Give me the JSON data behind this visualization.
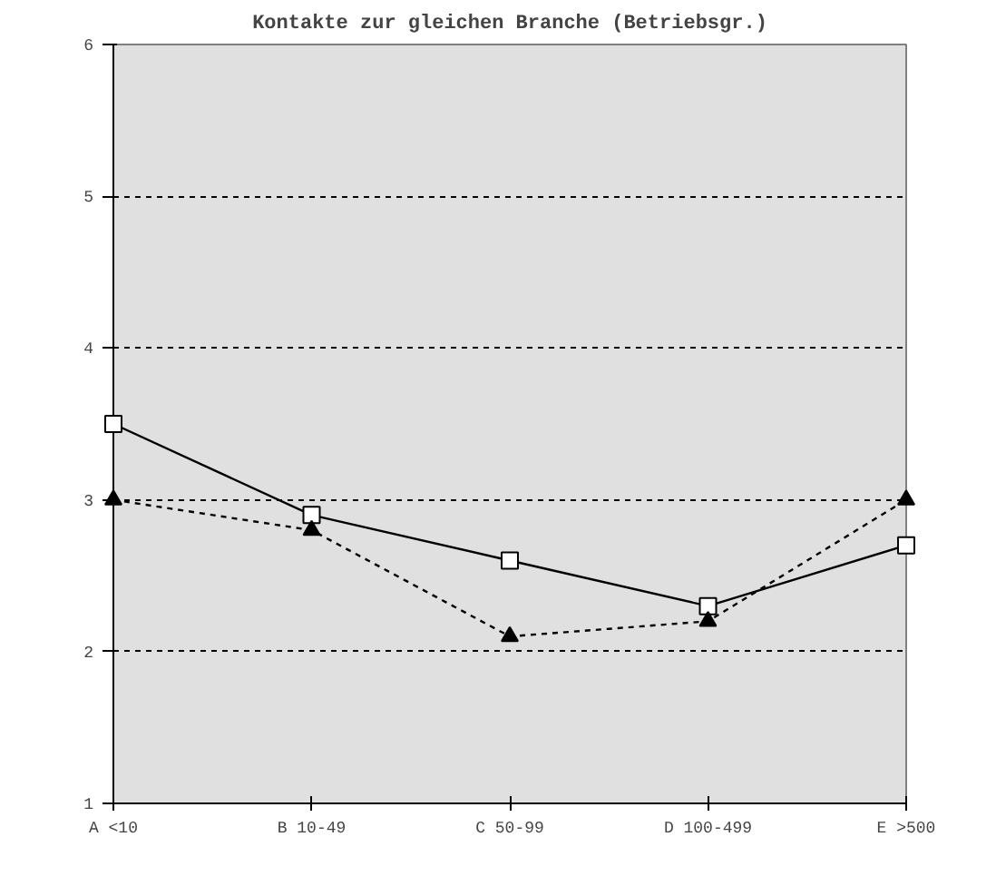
{
  "chart_data": {
    "type": "line",
    "title": "Kontakte zur gleichen Branche (Betriebsgr.)",
    "categories": [
      "A <10",
      "B 10-49",
      "C 50-99",
      "D 100-499",
      "E >500"
    ],
    "series": [
      {
        "color": "#000000",
        "marker": "square",
        "line_style": "solid",
        "values": [
          3.5,
          2.9,
          2.6,
          2.3,
          2.7
        ]
      },
      {
        "color": "#000000",
        "marker": "triangle",
        "line_style": "dashed",
        "values": [
          3.0,
          2.8,
          2.1,
          2.2,
          3.0
        ]
      }
    ],
    "ylim": [
      1,
      6
    ],
    "yticks": [
      1,
      2,
      3,
      4,
      5,
      6
    ],
    "grid": "y"
  }
}
